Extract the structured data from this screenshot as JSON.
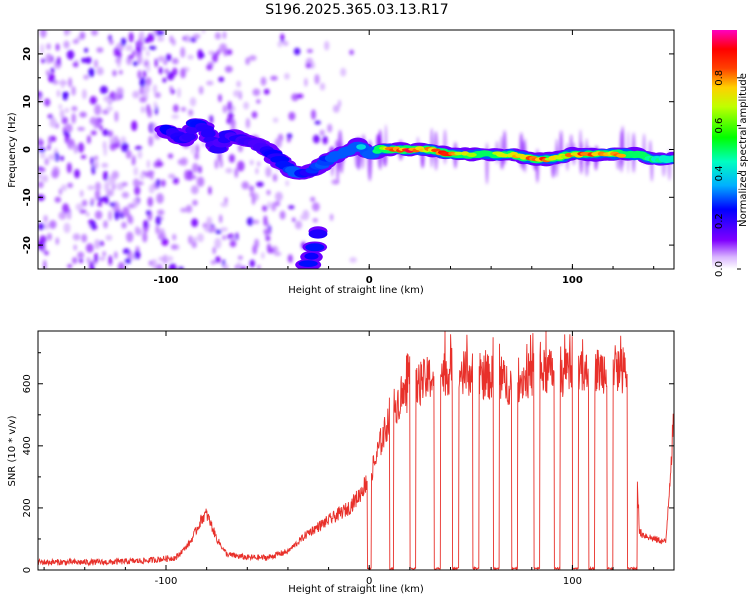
{
  "title": "S196.2025.365.03.13.R17",
  "chart_data": [
    {
      "type": "heatmap",
      "name": "spectrogram",
      "xlabel": "Height of straight line (km)",
      "ylabel": "Frequency (Hz)",
      "xlim": [
        -163,
        150
      ],
      "ylim": [
        -25,
        25
      ],
      "xticks": [
        -100,
        0,
        100
      ],
      "xtick_labels": [
        "-100",
        "0",
        "100"
      ],
      "yticks": [
        -20,
        -10,
        0,
        10,
        20
      ],
      "ytick_labels": [
        "-20",
        "-10",
        "0",
        "10",
        "20"
      ],
      "colorbar": {
        "label": "Normalized spectral amplitude",
        "range": [
          0,
          1
        ],
        "ticks": [
          0,
          0.2,
          0.4,
          0.6,
          0.8
        ],
        "tick_labels": [
          "0.0",
          "0.2",
          "0.4",
          "0.6",
          "0.8"
        ]
      },
      "ridge": {
        "x": [
          -100,
          -90,
          -85,
          -80,
          -75,
          -70,
          -60,
          -50,
          -40,
          -35,
          -30,
          -20,
          -15,
          -10,
          -5,
          0,
          5,
          10,
          20,
          30,
          40,
          50,
          60,
          70,
          80,
          85,
          90,
          100,
          110,
          120,
          130,
          140,
          150
        ],
        "freq": [
          4,
          2,
          6,
          4,
          0,
          3,
          2,
          0,
          -4,
          -5,
          -5,
          -2,
          -1,
          0,
          1,
          -1,
          0,
          0,
          0,
          0,
          -1,
          -1,
          -1,
          -1,
          -2,
          -2,
          -2,
          -1,
          -1,
          -1,
          -1,
          -2,
          -2
        ],
        "amplitude": [
          0.25,
          0.2,
          0.25,
          0.2,
          0.2,
          0.2,
          0.2,
          0.2,
          0.3,
          0.3,
          0.25,
          0.3,
          0.35,
          0.35,
          0.4,
          0.3,
          0.6,
          0.8,
          0.9,
          0.75,
          0.9,
          0.6,
          0.6,
          0.7,
          0.85,
          0.9,
          0.7,
          0.8,
          0.85,
          0.8,
          0.6,
          0.5,
          0.45
        ]
      },
      "low_tail": {
        "x": [
          -30,
          -27,
          -25
        ],
        "freq": [
          -24,
          -21,
          -17
        ],
        "amplitude": [
          0.25,
          0.25,
          0.2
        ]
      }
    },
    {
      "type": "line",
      "name": "snr",
      "xlabel": "Height of straight line (km)",
      "ylabel": "SNR (10 * v/v)",
      "xlim": [
        -163,
        150
      ],
      "ylim": [
        0,
        770
      ],
      "xticks": [
        -100,
        0,
        100
      ],
      "xtick_labels": [
        "-100",
        "0",
        "100"
      ],
      "yticks": [
        0,
        200,
        400,
        600
      ],
      "ytick_labels": [
        "0",
        "200",
        "400",
        "600"
      ],
      "color": "#e8302a",
      "envelope": {
        "x": [
          -163,
          -130,
          -110,
          -95,
          -88,
          -85,
          -82,
          -80,
          -78,
          -75,
          -70,
          -60,
          -50,
          -40,
          -30,
          -20,
          -10,
          -5,
          0,
          3,
          5,
          8,
          10,
          15,
          20,
          25,
          30,
          40,
          50,
          60,
          70,
          80,
          90,
          100,
          110,
          120,
          130,
          133,
          140,
          146,
          150
        ],
        "y": [
          25,
          25,
          30,
          40,
          90,
          130,
          170,
          180,
          150,
          100,
          50,
          40,
          40,
          60,
          120,
          160,
          200,
          240,
          300,
          350,
          400,
          450,
          500,
          550,
          580,
          600,
          620,
          640,
          630,
          620,
          600,
          630,
          640,
          620,
          640,
          650,
          640,
          120,
          100,
          90,
          500
        ]
      },
      "gaps": [
        [
          -1,
          1
        ],
        [
          10,
          12
        ],
        [
          20,
          23
        ],
        [
          32,
          35
        ],
        [
          41,
          44
        ],
        [
          51,
          54
        ],
        [
          61,
          64
        ],
        [
          70,
          73
        ],
        [
          81,
          84
        ],
        [
          91,
          94
        ],
        [
          100,
          103
        ],
        [
          108,
          111
        ],
        [
          117,
          120
        ],
        [
          127,
          132
        ]
      ]
    }
  ]
}
